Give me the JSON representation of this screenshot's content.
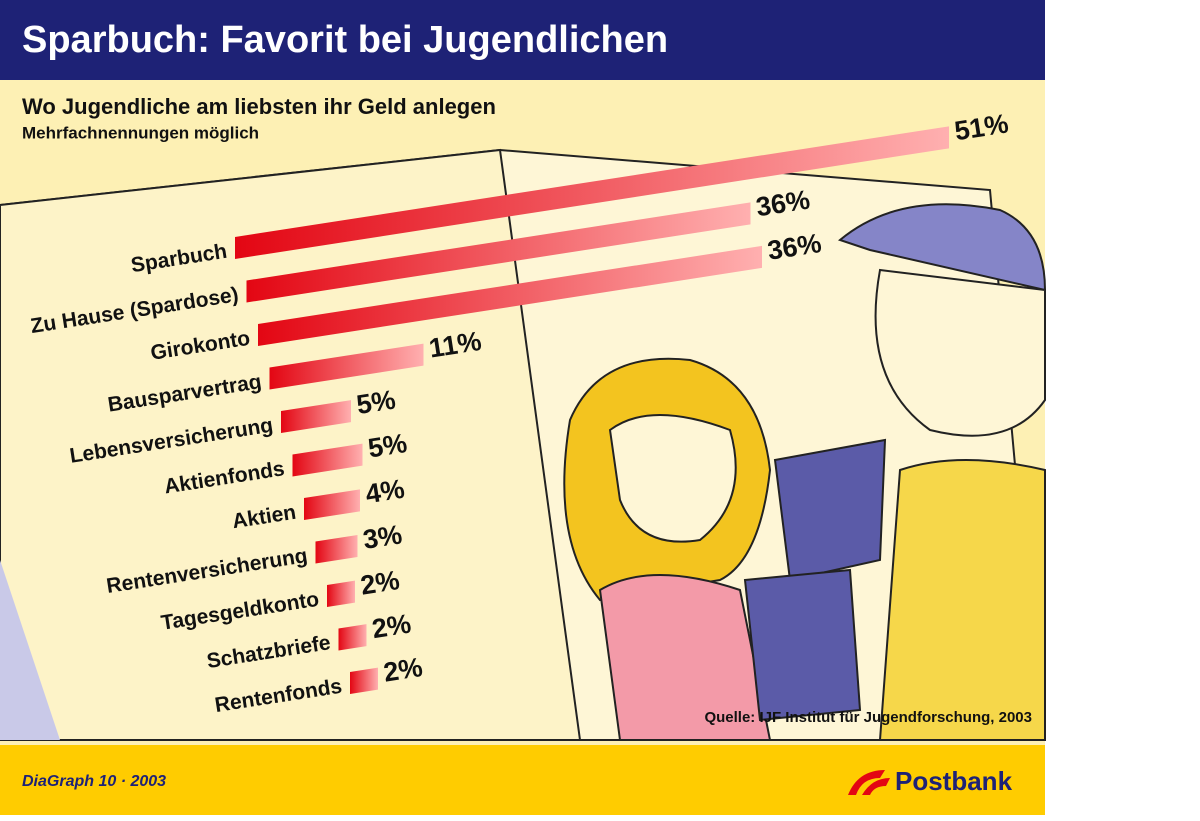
{
  "chart_data": {
    "type": "bar",
    "title": "Sparbuch: Favorit bei Jugendlichen",
    "subtitle": "Wo Jugendliche am liebsten ihr Geld anlegen",
    "note": "Mehrfachnennungen möglich",
    "source": "Quelle: IJF Institut für Jugendforschung, 2003",
    "footer": "DiaGraph 10 · 2003",
    "brand": "Postbank",
    "categories": [
      "Sparbuch",
      "Zu Hause (Spardose)",
      "Girokonto",
      "Bausparvertrag",
      "Lebensversicherung",
      "Aktienfonds",
      "Aktien",
      "Rentenversicherung",
      "Tagesgeldkonto",
      "Schatzbriefe",
      "Rentenfonds"
    ],
    "values": [
      51,
      36,
      36,
      11,
      5,
      5,
      4,
      3,
      2,
      2,
      2
    ],
    "value_labels": [
      "51%",
      "36%",
      "36%",
      "11%",
      "5%",
      "5%",
      "4%",
      "3%",
      "2%",
      "2%",
      "2%"
    ],
    "color": "#e30613"
  }
}
